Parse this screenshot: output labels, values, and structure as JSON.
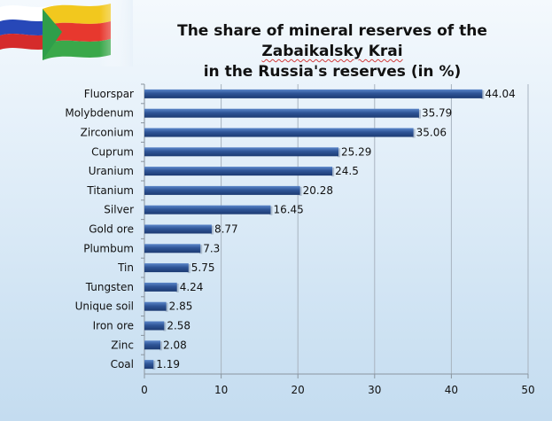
{
  "title": {
    "line1_pre": "The share of mineral reserves of the ",
    "line1_kw": "Zabaikalsky Krai",
    "line2": "in the Russia's reserves (in %)"
  },
  "chart_data": {
    "type": "bar",
    "orientation": "horizontal",
    "categories": [
      "Fluorspar",
      "Molybdenum",
      "Zirconium",
      "Cuprum",
      "Uranium",
      "Titanium",
      "Silver",
      "Gold ore",
      "Plumbum",
      "Tin",
      "Tungsten",
      "Unique soil",
      "Iron ore",
      "Zinc",
      "Coal"
    ],
    "values": [
      44.04,
      35.79,
      35.06,
      25.29,
      24.5,
      20.28,
      16.45,
      8.77,
      7.3,
      5.75,
      4.24,
      2.85,
      2.58,
      2.08,
      1.19
    ],
    "value_labels": [
      "44.04",
      "35.79",
      "35.06",
      "25.29",
      "24.5",
      "20.28",
      "16.45",
      "8.77",
      "7.3",
      "5.75",
      "4.24",
      "2.85",
      "2.58",
      "2.08",
      "1.19"
    ],
    "xlim": [
      0,
      50
    ],
    "xticks": [
      0,
      10,
      20,
      30,
      40,
      50
    ],
    "xtick_labels": [
      "0",
      "10",
      "20",
      "30",
      "40",
      "50"
    ],
    "grid": "vertical",
    "bar_color": "#2f5597",
    "legend": "none"
  }
}
